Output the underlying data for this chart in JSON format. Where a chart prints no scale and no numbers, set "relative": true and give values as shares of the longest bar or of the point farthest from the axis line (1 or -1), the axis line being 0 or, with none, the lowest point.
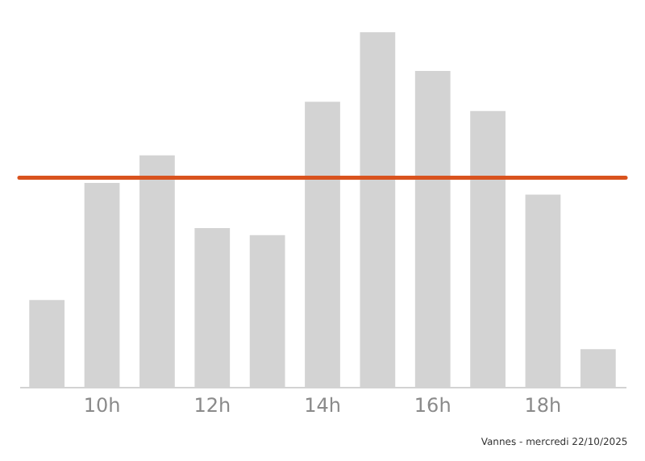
{
  "chart_data": {
    "type": "bar",
    "relative": true,
    "categories": [
      null,
      "10h",
      null,
      "12h",
      null,
      "14h",
      null,
      "16h",
      null,
      "18h",
      null
    ],
    "values": [
      0.245,
      0.575,
      0.653,
      0.448,
      0.428,
      0.804,
      1,
      0.891,
      0.778,
      0.542,
      0.106
    ],
    "color": "#d3d3d3",
    "ref_lines": [
      {
        "axis": "y",
        "value": 0.59,
        "color": "#d9531e"
      }
    ],
    "annotations": [
      "Vannes - mercredi 22/10/2025"
    ]
  }
}
